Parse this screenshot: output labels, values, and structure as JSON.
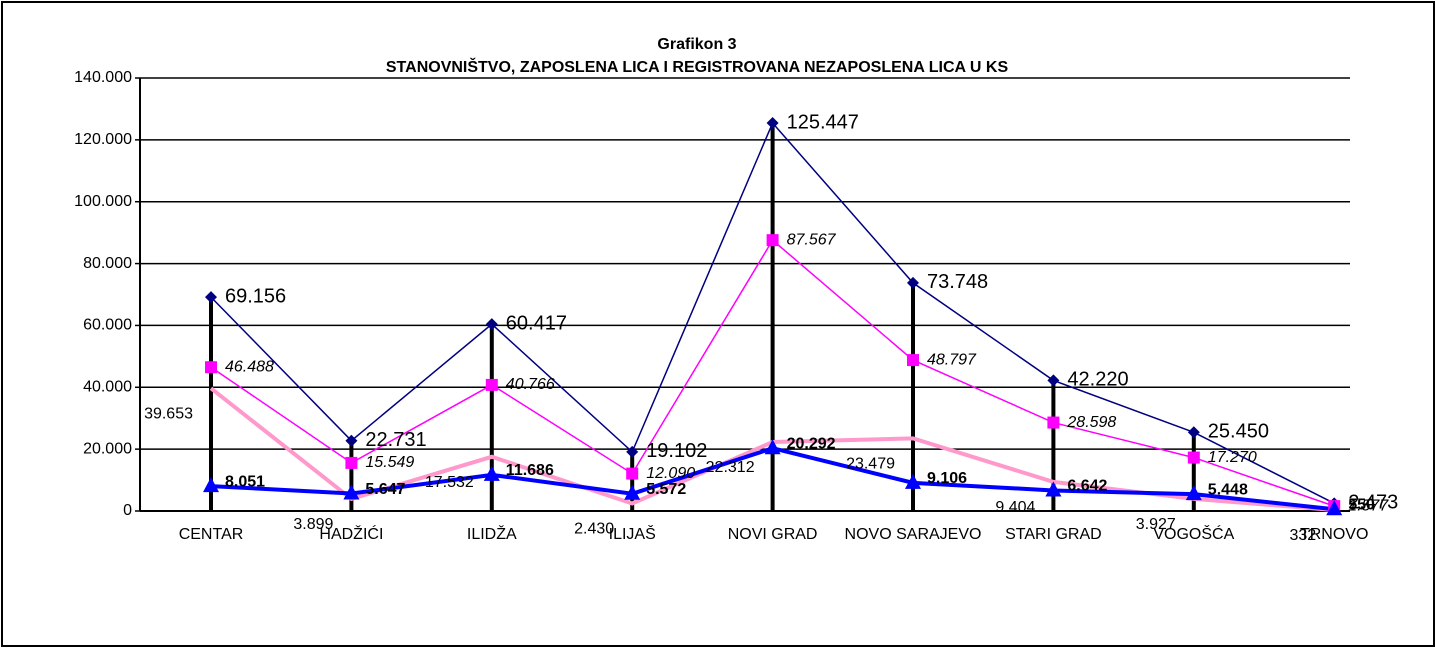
{
  "chart_data": {
    "type": "line",
    "title": "Grafikon 3",
    "subtitle": "STANOVNIŠTVO, ZAPOSLENA LICA I REGISTROVANA NEZAPOSLENA LICA U KS",
    "categories": [
      "CENTAR",
      "HADŽIĆI",
      "ILIDŽA",
      "ILIJAŠ",
      "NOVI GRAD",
      "NOVO SARAJEVO",
      "STARI GRAD",
      "VOGOŠĆA",
      "TRNOVO"
    ],
    "series": [
      {
        "color": "#000080",
        "marker": "diamond",
        "values": [
          69156,
          22731,
          60417,
          19102,
          125447,
          73748,
          42220,
          25450,
          2473
        ],
        "value_labels": [
          "69.156",
          "22.731",
          "60.417",
          "19.102",
          "125.447",
          "73.748",
          "42.220",
          "25.450",
          "2.473"
        ]
      },
      {
        "color": "#ff00ff",
        "marker": "square",
        "values": [
          46488,
          15549,
          40766,
          12090,
          87567,
          48797,
          28598,
          17270,
          1577
        ],
        "value_labels": [
          "46.488",
          "15.549",
          "40.766",
          "12.090",
          "87.567",
          "48.797",
          "28.598",
          "17.270",
          "1.577"
        ]
      },
      {
        "color": "#ff99cc",
        "values": [
          39653,
          3899,
          17532,
          2430,
          22312,
          23479,
          9404,
          3927,
          332
        ],
        "value_labels": [
          "39.653",
          "3.899",
          "17.532",
          "2.430",
          "22.312",
          "23.479",
          "9.404",
          "3.927",
          "332"
        ]
      },
      {
        "color": "#0000ff",
        "marker": "triangle",
        "values": [
          8051,
          5647,
          11686,
          5572,
          20292,
          9106,
          6642,
          5448,
          550
        ],
        "value_labels": [
          "8.051",
          "5.647",
          "11.686",
          "5.572",
          "20.292",
          "9.106",
          "6.642",
          "5.448",
          "550"
        ]
      }
    ],
    "ylim": [
      0,
      140000
    ],
    "yticks": [
      0,
      {
        "value": 20000,
        "label": "20.000"
      },
      {
        "value": 40000,
        "label": "40.000"
      },
      {
        "value": 60000,
        "label": "60.000"
      },
      {
        "value": 80000,
        "label": "80.000"
      },
      {
        "value": 100000,
        "label": "100.000"
      },
      {
        "value": 120000,
        "label": "120.000"
      },
      {
        "value": 140000,
        "label": "140.000"
      }
    ],
    "grid": true
  }
}
